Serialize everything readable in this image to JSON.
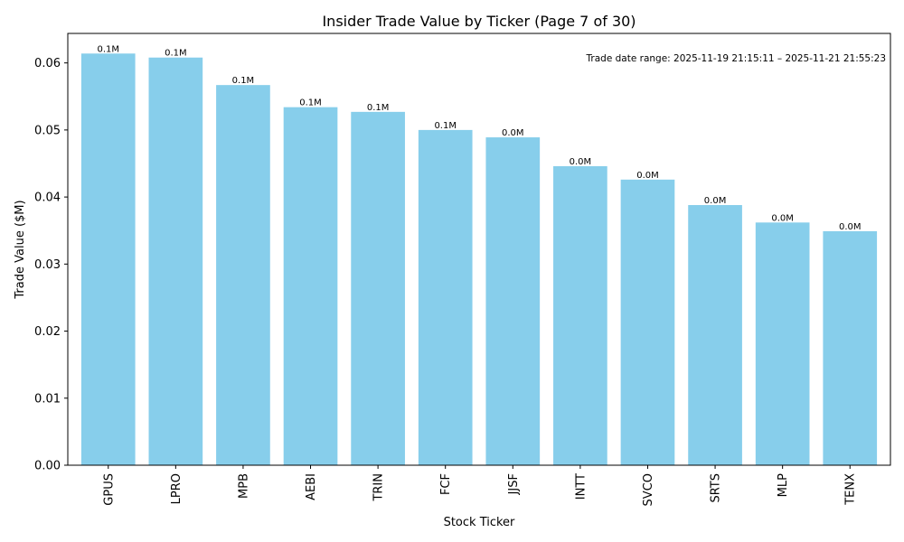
{
  "chart_data": {
    "type": "bar",
    "title": "Insider Trade Value by Ticker (Page 7 of 30)",
    "xlabel": "Stock Ticker",
    "ylabel": "Trade Value ($M)",
    "ylim": [
      0,
      0.0644
    ],
    "yticks": [
      0.0,
      0.01,
      0.02,
      0.03,
      0.04,
      0.05,
      0.06
    ],
    "ytick_labels": [
      "0.00",
      "0.01",
      "0.02",
      "0.03",
      "0.04",
      "0.05",
      "0.06"
    ],
    "categories": [
      "GPUS",
      "LPRO",
      "MPB",
      "AEBI",
      "TRIN",
      "FCF",
      "JJSF",
      "INTT",
      "SVCO",
      "SRTS",
      "MLP",
      "TENX"
    ],
    "values": [
      0.0614,
      0.0608,
      0.0567,
      0.0534,
      0.0527,
      0.05,
      0.0489,
      0.0446,
      0.0426,
      0.0388,
      0.0362,
      0.0349
    ],
    "data_labels": [
      "0.1M",
      "0.1M",
      "0.1M",
      "0.1M",
      "0.1M",
      "0.1M",
      "0.0M",
      "0.0M",
      "0.0M",
      "0.0M",
      "0.0M",
      "0.0M"
    ],
    "annotation": "Trade date range: 2025-11-19 21:15:11 – 2025-11-21 21:55:23",
    "bar_color": "#87ceeb",
    "grid": false,
    "legend": "none"
  }
}
